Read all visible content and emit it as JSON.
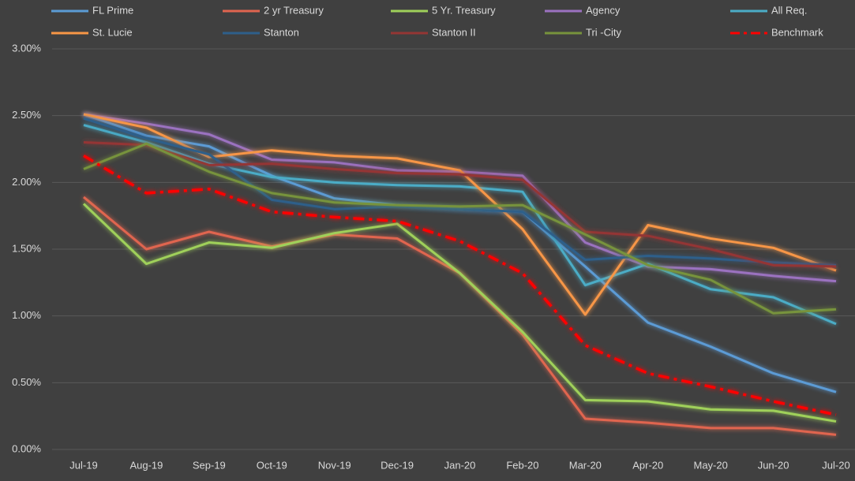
{
  "chart_data": {
    "type": "line",
    "categories": [
      "Jul-19",
      "Aug-19",
      "Sep-19",
      "Oct-19",
      "Nov-19",
      "Dec-19",
      "Jan-20",
      "Feb-20",
      "Mar-20",
      "Apr-20",
      "May-20",
      "Jun-20",
      "Jul-20"
    ],
    "ylim": [
      0,
      3
    ],
    "yticks": [
      {
        "value": 0,
        "label": "0.00%"
      },
      {
        "value": 0.5,
        "label": "0.50%"
      },
      {
        "value": 1,
        "label": "1.00%"
      },
      {
        "value": 1.5,
        "label": "1.50%"
      },
      {
        "value": 2,
        "label": "2.00%"
      },
      {
        "value": 2.5,
        "label": "2.50%"
      },
      {
        "value": 3,
        "label": "3.00%"
      }
    ],
    "grid": true,
    "legend": "top",
    "series": [
      {
        "name": "FL Prime",
        "color": "#5b9bd5",
        "values": [
          2.51,
          2.35,
          2.27,
          2.05,
          1.88,
          1.83,
          1.8,
          1.78,
          1.37,
          0.95,
          0.77,
          0.57,
          0.43
        ]
      },
      {
        "name": "2 yr Treasury",
        "color": "#e0654f",
        "values": [
          1.89,
          1.5,
          1.63,
          1.52,
          1.61,
          1.58,
          1.32,
          0.86,
          0.23,
          0.2,
          0.16,
          0.16,
          0.11
        ]
      },
      {
        "name": "5 Yr. Treasury",
        "color": "#9fd05a",
        "values": [
          1.84,
          1.39,
          1.55,
          1.51,
          1.62,
          1.69,
          1.32,
          0.88,
          0.37,
          0.36,
          0.3,
          0.29,
          0.21
        ]
      },
      {
        "name": "Agency",
        "color": "#9b72c0",
        "values": [
          2.51,
          2.44,
          2.36,
          2.17,
          2.15,
          2.09,
          2.08,
          2.05,
          1.55,
          1.37,
          1.35,
          1.3,
          1.26
        ]
      },
      {
        "name": "All Req.",
        "color": "#4bacc6",
        "values": [
          2.43,
          2.3,
          2.14,
          2.04,
          2.0,
          1.98,
          1.97,
          1.93,
          1.23,
          1.39,
          1.2,
          1.14,
          0.94
        ]
      },
      {
        "name": "St. Lucie",
        "color": "#f79646",
        "values": [
          2.51,
          2.41,
          2.19,
          2.24,
          2.2,
          2.18,
          2.09,
          1.65,
          1.01,
          1.68,
          1.58,
          1.51,
          1.34
        ]
      },
      {
        "name": "Stanton",
        "color": "#2e5f8a",
        "values": [
          2.48,
          2.33,
          2.21,
          1.87,
          1.8,
          1.82,
          1.8,
          1.78,
          1.42,
          1.45,
          1.43,
          1.4,
          1.38
        ]
      },
      {
        "name": "Stanton II",
        "color": "#943634",
        "values": [
          2.3,
          2.28,
          2.13,
          2.14,
          2.1,
          2.07,
          2.06,
          2.02,
          1.63,
          1.6,
          1.5,
          1.38,
          1.37
        ]
      },
      {
        "name": "Tri -City",
        "color": "#77933c",
        "values": [
          2.1,
          2.29,
          2.08,
          1.92,
          1.85,
          1.83,
          1.82,
          1.83,
          1.61,
          1.38,
          1.27,
          1.02,
          1.05
        ]
      },
      {
        "name": "Benchmark",
        "color": "#ff0000",
        "style": "dash-dot",
        "values": [
          2.2,
          1.92,
          1.95,
          1.78,
          1.74,
          1.71,
          1.56,
          1.32,
          0.78,
          0.57,
          0.47,
          0.36,
          0.26
        ]
      }
    ]
  }
}
